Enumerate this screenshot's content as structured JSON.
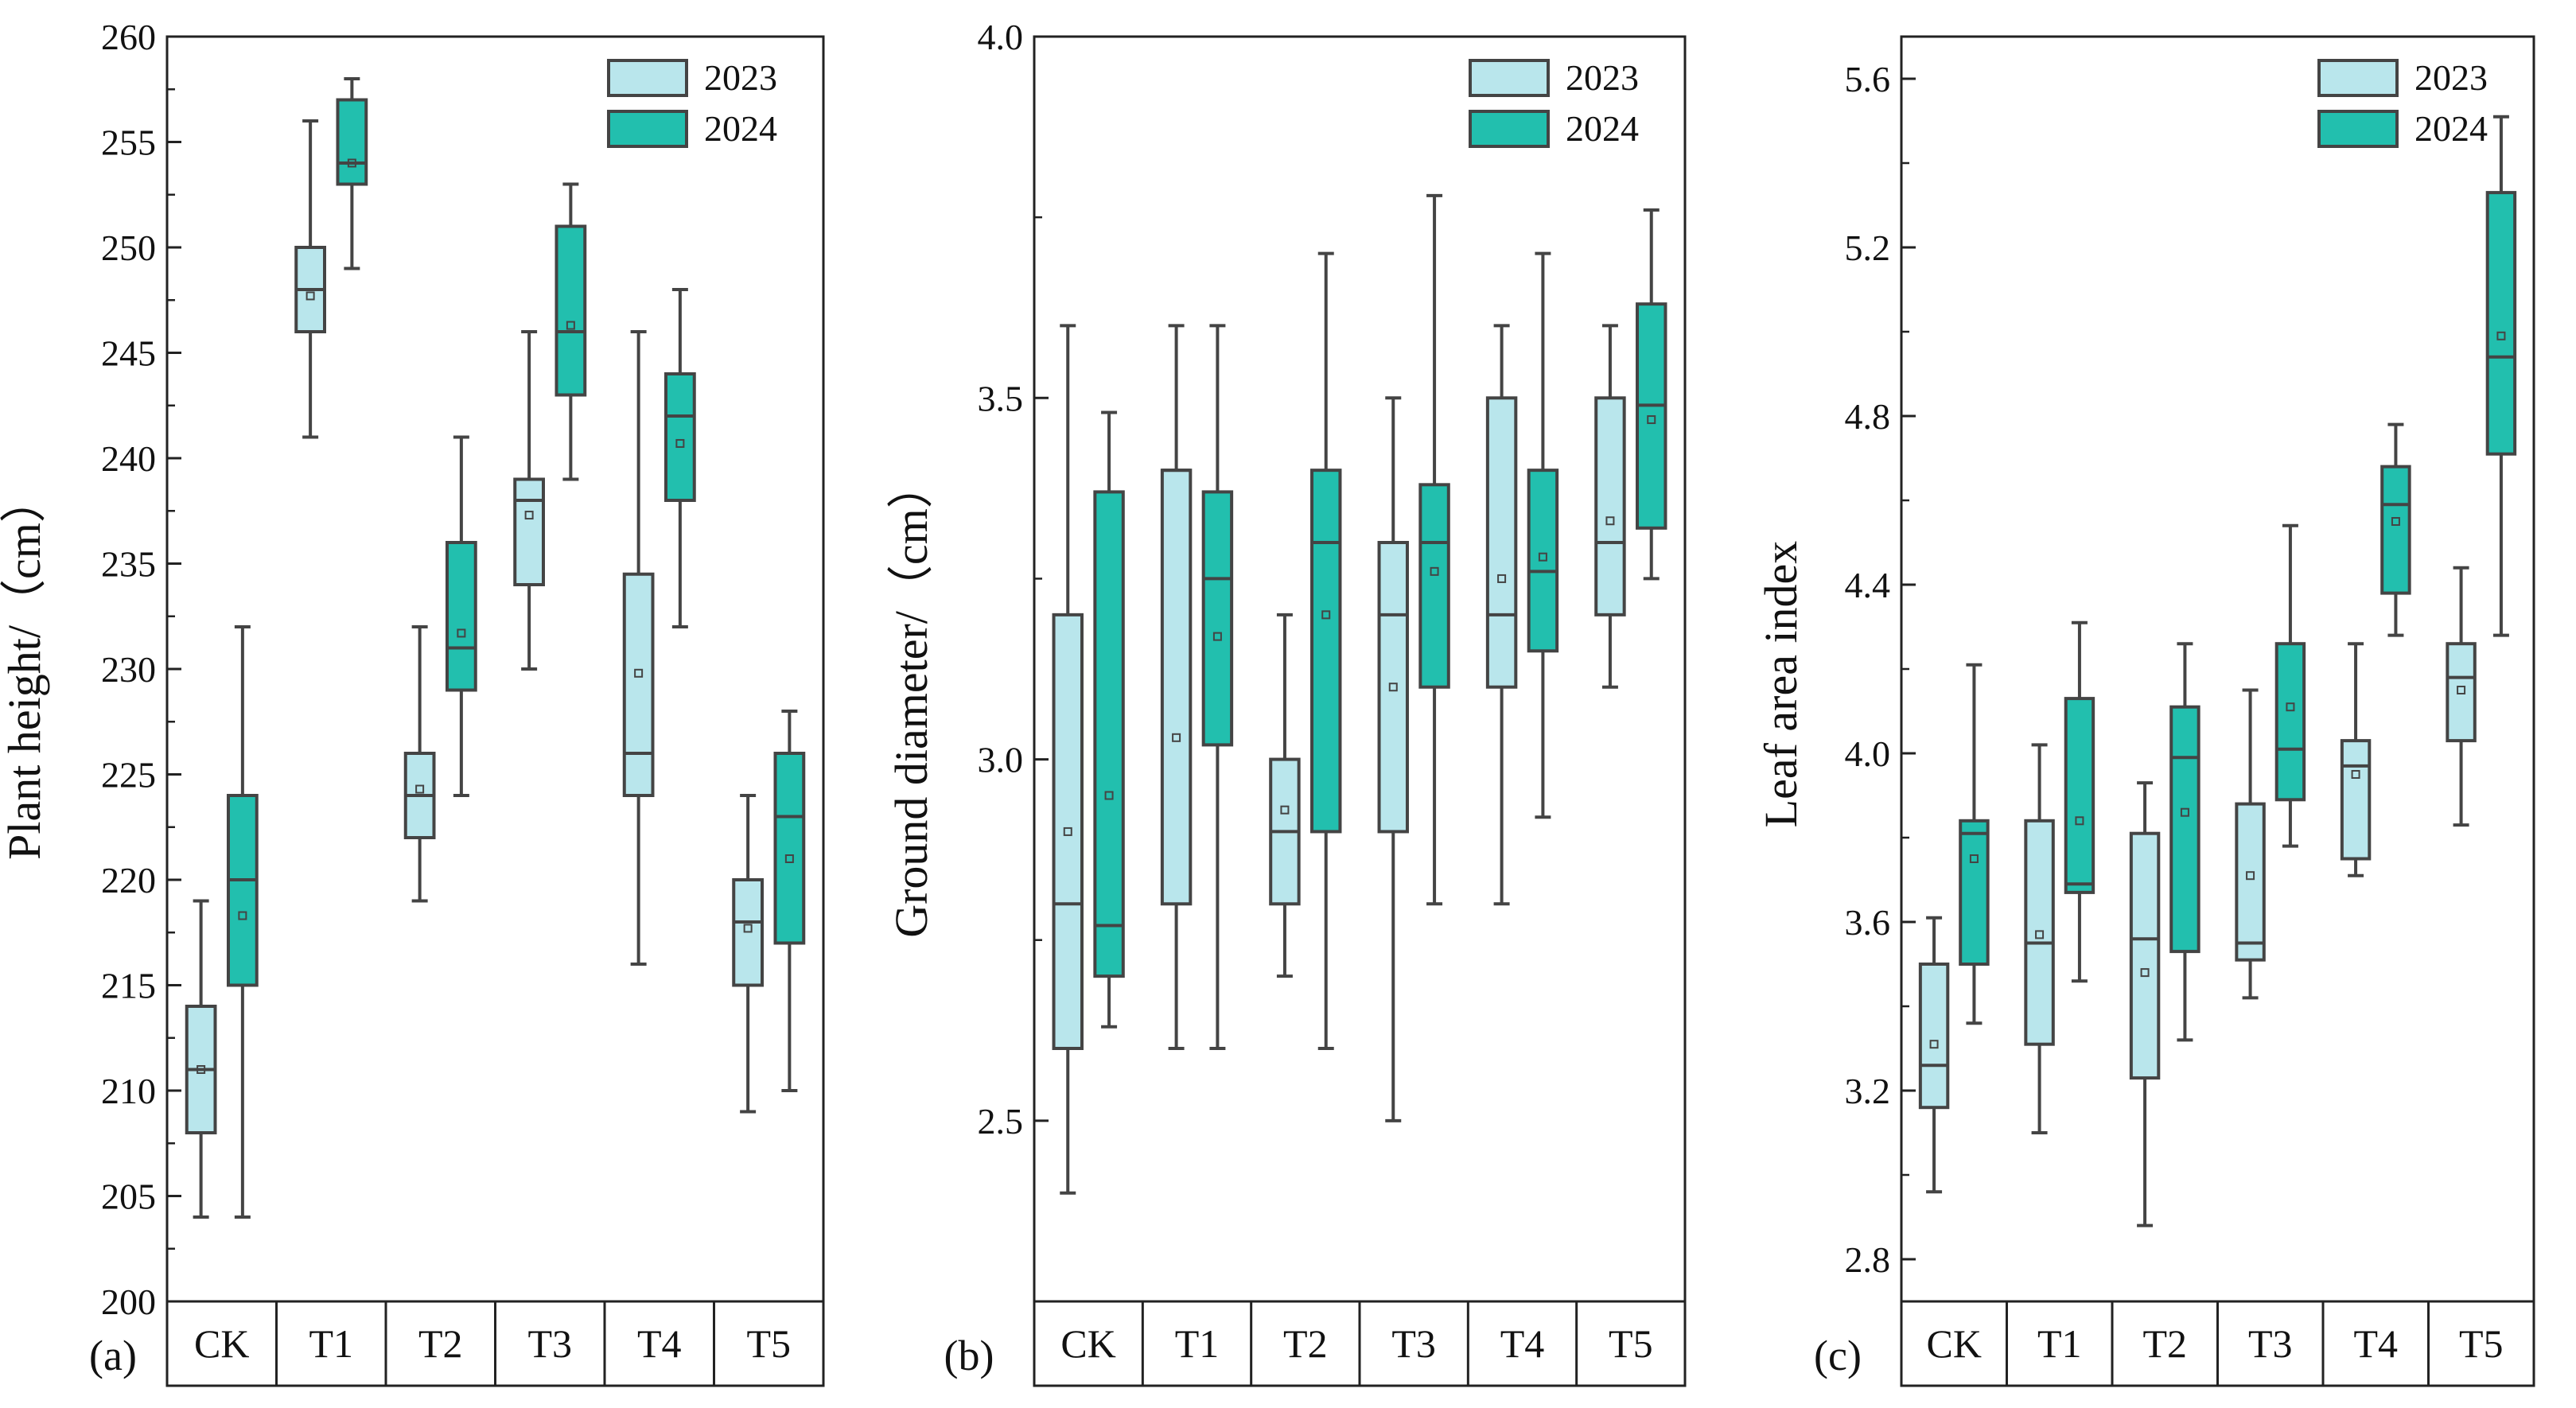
{
  "colors": {
    "series_2023": "#b9e6ec",
    "series_2024": "#22bfae",
    "stroke": "#444444"
  },
  "chart_data": [
    {
      "type": "box",
      "panel_label": "(a)",
      "ylabel": "Plant height/（cm）",
      "categories": [
        "CK",
        "T1",
        "T2",
        "T3",
        "T4",
        "T5"
      ],
      "ylim": [
        200,
        260
      ],
      "yticks": [
        200,
        205,
        210,
        215,
        220,
        225,
        230,
        235,
        240,
        245,
        250,
        255,
        260
      ],
      "legend_position": "top-right",
      "series": [
        {
          "name": "2023",
          "boxes": [
            {
              "min": 204,
              "q1": 208,
              "median": 211,
              "q3": 214,
              "max": 219,
              "mean": 211
            },
            {
              "min": 241,
              "q1": 246,
              "median": 248,
              "q3": 250,
              "max": 256,
              "mean": 247.7
            },
            {
              "min": 219,
              "q1": 222,
              "median": 224,
              "q3": 226,
              "max": 232,
              "mean": 224.3
            },
            {
              "min": 230,
              "q1": 234,
              "median": 238,
              "q3": 239,
              "max": 246,
              "mean": 237.3
            },
            {
              "min": 216,
              "q1": 224,
              "median": 226,
              "q3": 234.5,
              "max": 246,
              "mean": 229.8
            },
            {
              "min": 209,
              "q1": 215,
              "median": 218,
              "q3": 220,
              "max": 224,
              "mean": 217.7
            }
          ]
        },
        {
          "name": "2024",
          "boxes": [
            {
              "min": 204,
              "q1": 215,
              "median": 220,
              "q3": 224,
              "max": 232,
              "mean": 218.3
            },
            {
              "min": 249,
              "q1": 253,
              "median": 254,
              "q3": 257,
              "max": 258,
              "mean": 254
            },
            {
              "min": 224,
              "q1": 229,
              "median": 231,
              "q3": 236,
              "max": 241,
              "mean": 231.7
            },
            {
              "min": 239,
              "q1": 243,
              "median": 246,
              "q3": 251,
              "max": 253,
              "mean": 246.3
            },
            {
              "min": 232,
              "q1": 238,
              "median": 242,
              "q3": 244,
              "max": 248,
              "mean": 240.7
            },
            {
              "min": 210,
              "q1": 217,
              "median": 223,
              "q3": 226,
              "max": 228,
              "mean": 221
            }
          ]
        }
      ]
    },
    {
      "type": "box",
      "panel_label": "(b)",
      "ylabel": "Ground diameter/（cm）",
      "categories": [
        "CK",
        "T1",
        "T2",
        "T3",
        "T4",
        "T5"
      ],
      "ylim": [
        2.25,
        4.0
      ],
      "yticks": [
        2.5,
        3.0,
        3.5,
        4.0
      ],
      "ytick_labels": [
        "2.5",
        "3.0",
        "3.5",
        "4.0"
      ],
      "legend_position": "top-right",
      "series": [
        {
          "name": "2023",
          "boxes": [
            {
              "min": 2.4,
              "q1": 2.6,
              "median": 2.8,
              "q3": 3.2,
              "max": 3.6,
              "mean": 2.9
            },
            {
              "min": 2.6,
              "q1": 2.8,
              "median": 3.4,
              "q3": 3.4,
              "max": 3.6,
              "mean": 3.03
            },
            {
              "min": 2.7,
              "q1": 2.8,
              "median": 2.9,
              "q3": 3.0,
              "max": 3.2,
              "mean": 2.93
            },
            {
              "min": 2.5,
              "q1": 2.9,
              "median": 3.2,
              "q3": 3.3,
              "max": 3.5,
              "mean": 3.1
            },
            {
              "min": 2.8,
              "q1": 3.1,
              "median": 3.2,
              "q3": 3.5,
              "max": 3.6,
              "mean": 3.25
            },
            {
              "min": 3.1,
              "q1": 3.2,
              "median": 3.3,
              "q3": 3.5,
              "max": 3.6,
              "mean": 3.33
            }
          ]
        },
        {
          "name": "2024",
          "boxes": [
            {
              "min": 2.63,
              "q1": 2.7,
              "median": 2.77,
              "q3": 3.37,
              "max": 3.48,
              "mean": 2.95
            },
            {
              "min": 2.6,
              "q1": 3.02,
              "median": 3.25,
              "q3": 3.37,
              "max": 3.6,
              "mean": 3.17
            },
            {
              "min": 2.6,
              "q1": 2.9,
              "median": 3.3,
              "q3": 3.4,
              "max": 3.7,
              "mean": 3.2
            },
            {
              "min": 2.8,
              "q1": 3.1,
              "median": 3.3,
              "q3": 3.38,
              "max": 3.78,
              "mean": 3.26
            },
            {
              "min": 2.92,
              "q1": 3.15,
              "median": 3.26,
              "q3": 3.4,
              "max": 3.7,
              "mean": 3.28
            },
            {
              "min": 3.25,
              "q1": 3.32,
              "median": 3.49,
              "q3": 3.63,
              "max": 3.76,
              "mean": 3.47
            }
          ]
        }
      ]
    },
    {
      "type": "box",
      "panel_label": "(c)",
      "ylabel": "Leaf area index",
      "categories": [
        "CK",
        "T1",
        "T2",
        "T3",
        "T4",
        "T5"
      ],
      "ylim": [
        2.7,
        5.7
      ],
      "yticks": [
        2.8,
        3.2,
        3.6,
        4.0,
        4.4,
        4.8,
        5.2,
        5.6
      ],
      "ytick_labels": [
        "2.8",
        "3.2",
        "3.6",
        "4.0",
        "4.4",
        "4.8",
        "5.2",
        "5.6"
      ],
      "legend_position": "top-right",
      "series": [
        {
          "name": "2023",
          "boxes": [
            {
              "min": 2.96,
              "q1": 3.16,
              "median": 3.26,
              "q3": 3.5,
              "max": 3.61,
              "mean": 3.31
            },
            {
              "min": 3.1,
              "q1": 3.31,
              "median": 3.55,
              "q3": 3.84,
              "max": 4.02,
              "mean": 3.57
            },
            {
              "min": 2.88,
              "q1": 3.23,
              "median": 3.56,
              "q3": 3.81,
              "max": 3.93,
              "mean": 3.48
            },
            {
              "min": 3.42,
              "q1": 3.51,
              "median": 3.55,
              "q3": 3.88,
              "max": 4.15,
              "mean": 3.71
            },
            {
              "min": 3.71,
              "q1": 3.75,
              "median": 3.97,
              "q3": 4.03,
              "max": 4.26,
              "mean": 3.95
            },
            {
              "min": 3.83,
              "q1": 4.03,
              "median": 4.18,
              "q3": 4.26,
              "max": 4.44,
              "mean": 4.15
            }
          ]
        },
        {
          "name": "2024",
          "boxes": [
            {
              "min": 3.36,
              "q1": 3.5,
              "median": 3.81,
              "q3": 3.84,
              "max": 4.21,
              "mean": 3.75
            },
            {
              "min": 3.46,
              "q1": 3.67,
              "median": 3.69,
              "q3": 4.13,
              "max": 4.31,
              "mean": 3.84
            },
            {
              "min": 3.32,
              "q1": 3.53,
              "median": 3.99,
              "q3": 4.11,
              "max": 4.26,
              "mean": 3.86
            },
            {
              "min": 3.78,
              "q1": 3.89,
              "median": 4.01,
              "q3": 4.26,
              "max": 4.54,
              "mean": 4.11
            },
            {
              "min": 4.28,
              "q1": 4.38,
              "median": 4.59,
              "q3": 4.68,
              "max": 4.78,
              "mean": 4.55
            },
            {
              "min": 4.28,
              "q1": 4.71,
              "median": 4.94,
              "q3": 5.33,
              "max": 5.51,
              "mean": 4.99
            }
          ]
        }
      ]
    }
  ]
}
